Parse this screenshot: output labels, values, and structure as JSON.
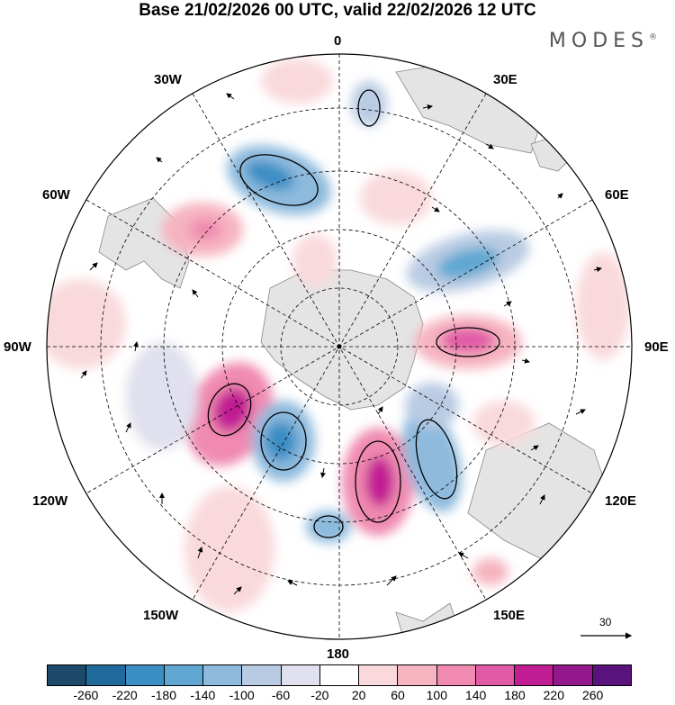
{
  "title": "Base 21/02/2026 00 UTC, valid 22/02/2026 12 UTC",
  "brand": "MODES",
  "brand_mark": "®",
  "longitude_labels": {
    "top": "0",
    "bottom": "180",
    "left": "90W",
    "right": "90E",
    "w30": "30W",
    "e30": "30E",
    "w60": "60W",
    "e60": "60E",
    "w120": "120W",
    "e120": "120E",
    "w150": "150W",
    "e150": "150E"
  },
  "vector_scale_label": "30",
  "colorbar": {
    "colors": [
      "#1d4a6b",
      "#1f6a9a",
      "#3a8ec4",
      "#5fa7d2",
      "#8dbadd",
      "#b9cbe3",
      "#e0e0ee",
      "#ffffff",
      "#f9d9dc",
      "#f6b3c0",
      "#f08ab0",
      "#e15aa6",
      "#c21e94",
      "#93188b",
      "#5a137c"
    ],
    "tick_labels": [
      "-260",
      "-220",
      "-180",
      "-140",
      "-100",
      "-60",
      "-20",
      "20",
      "60",
      "100",
      "140",
      "180",
      "220",
      "260"
    ]
  },
  "map_colors": {
    "land": "#e4e4e4",
    "coast": "#888888",
    "grid": "#000000",
    "arrow": "#000000"
  }
}
